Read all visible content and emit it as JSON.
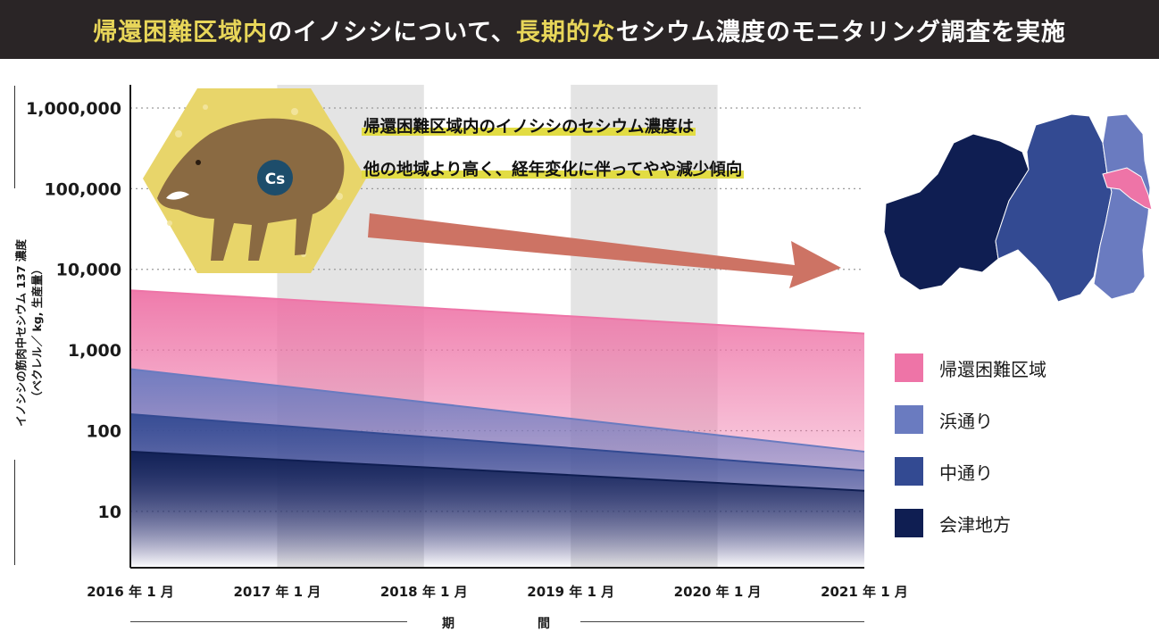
{
  "banner": {
    "part1": "帰還困難区域内",
    "part2": "のイノシシについて、",
    "part3": "長期的な",
    "part4": "セシウム濃度のモニタリング調査を実施"
  },
  "y_axis_title": {
    "line1": "イノシシの筋肉中セシウム 137 濃度",
    "line2": "（ベクレル／ kg, 生産量）"
  },
  "callout": {
    "line1": "帰還困難区域内のイノシシのセシウム濃度は",
    "line2": "他の地域より高く、経年変化に伴ってやや減少傾向"
  },
  "icon": {
    "badge_text": "Cs",
    "name": "wild-boar-icon"
  },
  "x_axis_title": {
    "char1": "期",
    "char2": "間"
  },
  "chart_data": {
    "type": "area",
    "yscale": "log",
    "ylim": [
      2,
      1000000
    ],
    "y_ticks": [
      {
        "value": 10,
        "label": "10"
      },
      {
        "value": 100,
        "label": "100"
      },
      {
        "value": 1000,
        "label": "1,000"
      },
      {
        "value": 10000,
        "label": "10,000"
      },
      {
        "value": 100000,
        "label": "100,000"
      },
      {
        "value": 1000000,
        "label": "1,000,000"
      }
    ],
    "categories": [
      "2016 年 1 月",
      "2017 年 1 月",
      "2018 年 1 月",
      "2019 年 1 月",
      "2020 年 1 月",
      "2021 年 1 月"
    ],
    "shaded_bands": [
      [
        1,
        2
      ],
      [
        3,
        4
      ]
    ],
    "series": [
      {
        "name": "帰還困難区域",
        "color": "#ee74a7",
        "start": 5500,
        "end": 1600
      },
      {
        "name": "浜通り",
        "color": "#6a7bc0",
        "start": 580,
        "end": 55
      },
      {
        "name": "中通り",
        "color": "#334a92",
        "start": 160,
        "end": 32
      },
      {
        "name": "会津地方",
        "color": "#0f1e52",
        "start": 55,
        "end": 18
      }
    ],
    "legend_position": "right"
  },
  "map": {
    "regions": [
      {
        "name": "会津地方",
        "color": "#0f1e52"
      },
      {
        "name": "中通り",
        "color": "#334a92"
      },
      {
        "name": "浜通り",
        "color": "#6a7bc0"
      },
      {
        "name": "帰還困難区域",
        "color": "#ee74a7"
      }
    ]
  }
}
